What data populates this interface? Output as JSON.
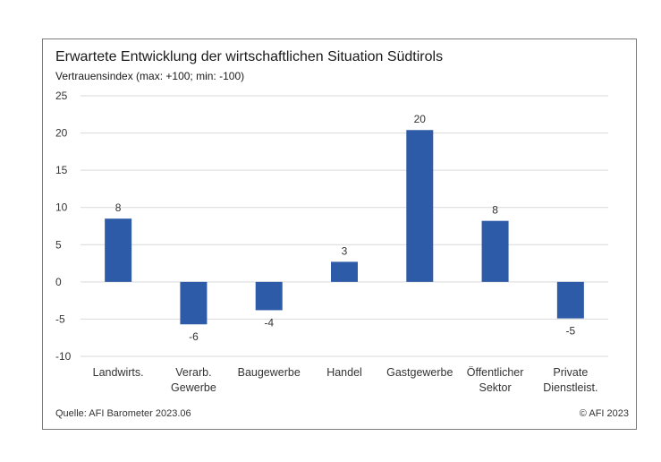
{
  "chart_data": {
    "type": "bar",
    "title": "Erwartete Entwicklung der wirtschaftlichen Situation Südtirols",
    "subtitle": "Vertrauensindex (max: +100; min: -100)",
    "categories": [
      [
        "Landwirts."
      ],
      [
        "Verarb.",
        "Gewerbe"
      ],
      [
        "Baugewerbe"
      ],
      [
        "Handel"
      ],
      [
        "Gastgewerbe"
      ],
      [
        "Öffentlicher",
        "Sektor"
      ],
      [
        "Private",
        "Dienstleist."
      ]
    ],
    "values": [
      8.5,
      -5.7,
      -3.8,
      2.7,
      20.4,
      8.2,
      -4.9
    ],
    "data_labels": [
      "8",
      "-6",
      "-4",
      "3",
      "20",
      "8",
      "-5"
    ],
    "ylim": [
      -10,
      25
    ],
    "yticks": [
      25,
      20,
      15,
      10,
      5,
      0,
      -5,
      -10
    ],
    "grid": true,
    "bar_color": "#2e5ba8",
    "grid_color": "#d9d9d9"
  },
  "footer": {
    "source": "Quelle: AFI Barometer 2023.06",
    "copyright": "© AFI 2023"
  }
}
